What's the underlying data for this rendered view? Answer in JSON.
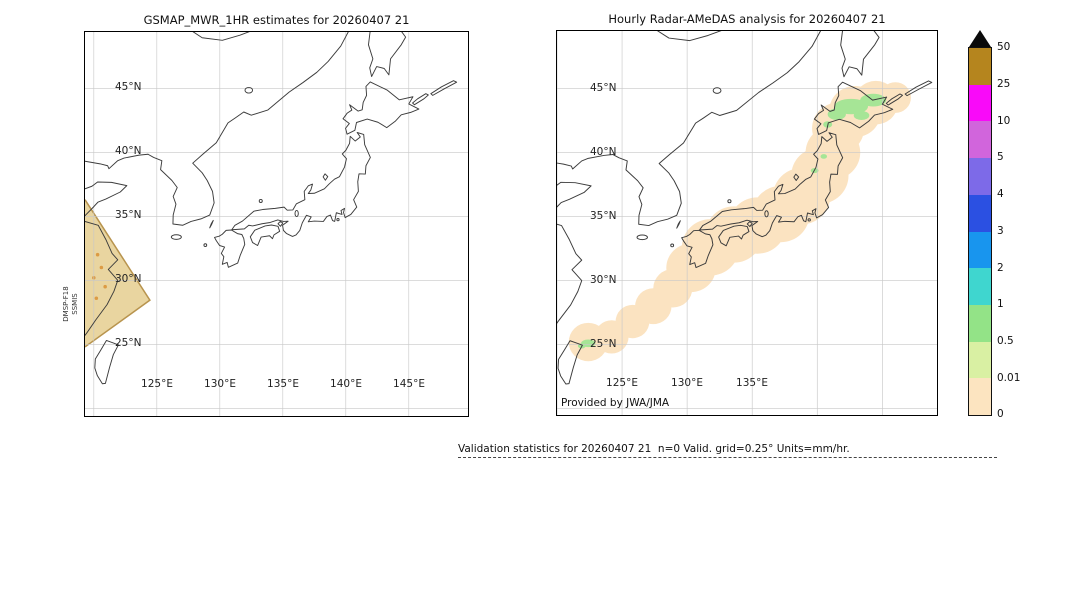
{
  "panels": {
    "left": {
      "title": "GSMAP_MWR_1HR estimates for 20260407 21",
      "instrument_label": {
        "line1": "DMSP-F18",
        "line2": "SSMIS"
      },
      "lat_tick_labels": [
        "45°N",
        "40°N",
        "35°N",
        "30°N",
        "25°N"
      ],
      "lon_tick_labels": [
        "125°E",
        "130°E",
        "135°E",
        "140°E",
        "145°E"
      ]
    },
    "right": {
      "title": "Hourly Radar-AMeDAS analysis for 20260407 21",
      "credit": "Provided by JWA/JMA",
      "lat_tick_labels": [
        "45°N",
        "40°N",
        "35°N",
        "30°N",
        "25°N"
      ],
      "lon_tick_labels": [
        "125°E",
        "130°E",
        "135°E"
      ]
    }
  },
  "colorbar": {
    "tick_labels": [
      "50",
      "25",
      "10",
      "5",
      "4",
      "3",
      "2",
      "1",
      "0.5",
      "0.01",
      "0"
    ],
    "segment_colors_top_to_bottom": [
      "#b5851e",
      "#f90af9",
      "#d165dc",
      "#7d6ae8",
      "#2b50e2",
      "#1895ee",
      "#3fd6cf",
      "#93e387",
      "#d9f0a3",
      "#fce4c0"
    ],
    "over_range_color": "#0a0a0a"
  },
  "footer": {
    "text": "Validation statistics for 20260407 21  n=0 Valid. grid=0.25° Units=mm/hr."
  },
  "chart_data": {
    "type": "heatmap",
    "units": "mm/hr",
    "colour_scale_levels": [
      0,
      0.01,
      0.5,
      1,
      2,
      3,
      4,
      5,
      10,
      25,
      50
    ],
    "panels": [
      {
        "name": "GSMAP_MWR_1HR estimates for 20260407 21",
        "grid_lons": [
          120,
          125,
          130,
          135,
          140,
          145
        ],
        "grid_lats": [
          20,
          25,
          30,
          35,
          40,
          45
        ],
        "swath_polygon_lonlat": [
          [
            119.3,
            36.3
          ],
          [
            124.45,
            28.45
          ],
          [
            119.3,
            24.8
          ]
        ],
        "swath_fill": "#e9d5a0",
        "swath_edge": "#b8944e",
        "speckles": {
          "color": "#dc9b44",
          "points": [
            [
              120.3,
              32.0
            ],
            [
              120.6,
              31.0
            ],
            [
              120.0,
              30.2
            ],
            [
              120.9,
              29.5
            ],
            [
              120.2,
              28.6
            ]
          ]
        }
      },
      {
        "name": "Hourly Radar-AMeDAS analysis for 20260407 21",
        "grid_lons": [
          120,
          125,
          130,
          135,
          140,
          145
        ],
        "grid_lats": [
          20,
          25,
          30,
          35,
          40,
          45
        ],
        "rain_area_color": "#fbe3c1",
        "rain_blobs_lonlat_r": [
          [
            122.4,
            25.2,
            1.5
          ],
          [
            124.2,
            25.6,
            1.3
          ],
          [
            125.8,
            26.8,
            1.3
          ],
          [
            127.4,
            28.0,
            1.4
          ],
          [
            128.9,
            29.4,
            1.5
          ],
          [
            130.3,
            31.0,
            1.9
          ],
          [
            131.8,
            32.6,
            2.2
          ],
          [
            133.6,
            33.6,
            2.2
          ],
          [
            135.4,
            34.3,
            2.2
          ],
          [
            137.2,
            35.2,
            2.2
          ],
          [
            138.8,
            36.6,
            2.2
          ],
          [
            140.2,
            38.2,
            2.2
          ],
          [
            141.2,
            40.0,
            2.1
          ],
          [
            141.6,
            41.9,
            2.0
          ],
          [
            142.9,
            43.2,
            2.0
          ],
          [
            144.5,
            43.9,
            1.7
          ],
          [
            146.0,
            44.3,
            1.2
          ]
        ],
        "light_rain_color": "#a6e596",
        "light_rain_ellipses_lonlat_rxry": [
          [
            142.6,
            43.6,
            1.3,
            0.6
          ],
          [
            144.3,
            44.1,
            1.0,
            0.5
          ],
          [
            141.5,
            43.0,
            0.7,
            0.45
          ],
          [
            143.4,
            42.9,
            0.6,
            0.35
          ],
          [
            140.8,
            42.2,
            0.35,
            0.25
          ],
          [
            139.8,
            38.6,
            0.3,
            0.2
          ],
          [
            140.5,
            39.7,
            0.25,
            0.18
          ],
          [
            122.4,
            25.1,
            0.55,
            0.3
          ],
          [
            121.9,
            24.9,
            0.3,
            0.2
          ]
        ]
      }
    ]
  }
}
